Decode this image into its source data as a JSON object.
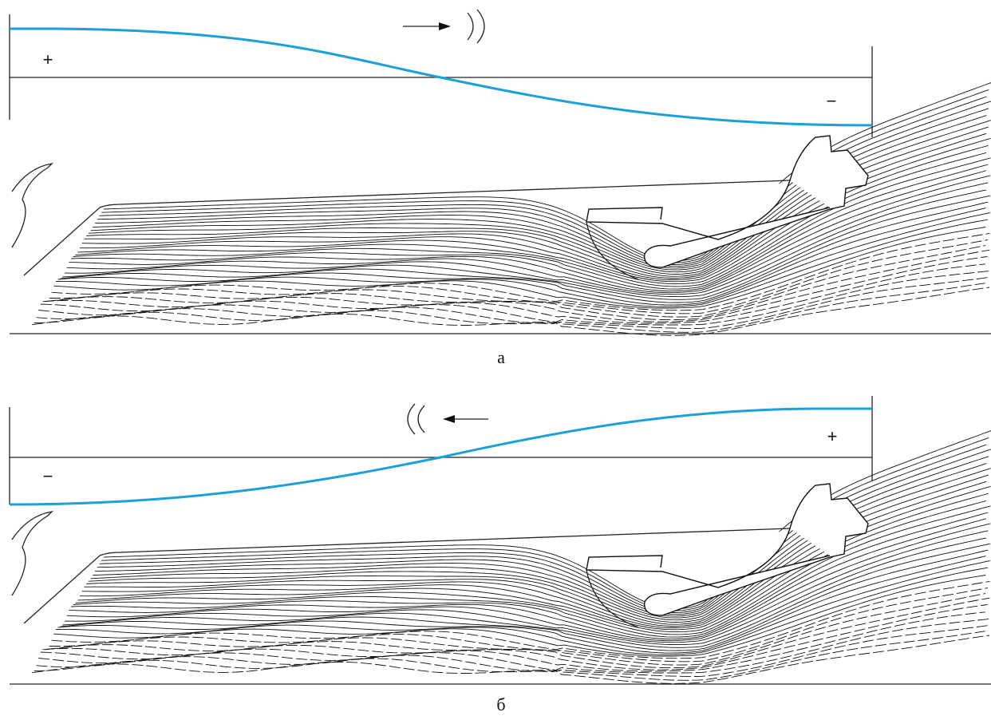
{
  "panels": [
    {
      "left_sign": "+",
      "right_sign": "−",
      "caption": "а"
    },
    {
      "left_sign": "−",
      "right_sign": "+",
      "caption": "б"
    }
  ]
}
